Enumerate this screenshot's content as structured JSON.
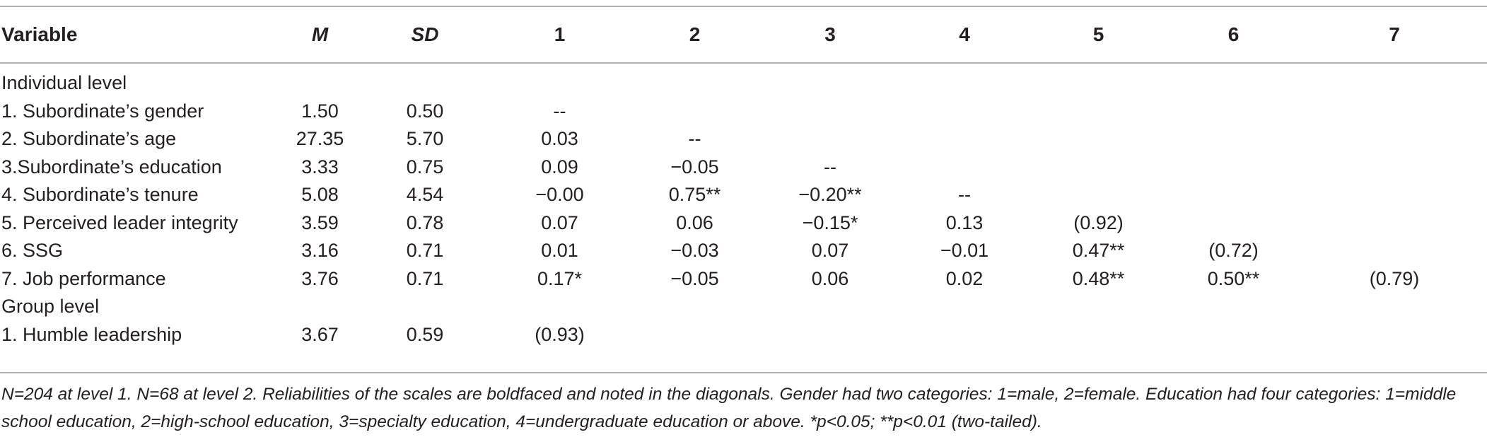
{
  "header": {
    "variable": "Variable",
    "m": "M",
    "sd": "SD",
    "cols": [
      "1",
      "2",
      "3",
      "4",
      "5",
      "6",
      "7"
    ]
  },
  "sections": [
    {
      "label": "Individual level",
      "rows": [
        {
          "label": "1. Subordinate’s gender",
          "m": "1.50",
          "sd": "0.50",
          "cells": [
            "--",
            "",
            "",
            "",
            "",
            "",
            ""
          ]
        },
        {
          "label": "2. Subordinate’s age",
          "m": "27.35",
          "sd": "5.70",
          "cells": [
            "0.03",
            "--",
            "",
            "",
            "",
            "",
            ""
          ]
        },
        {
          "label": "3.Subordinate’s education",
          "m": "3.33",
          "sd": "0.75",
          "cells": [
            "0.09",
            "−0.05",
            "--",
            "",
            "",
            "",
            ""
          ]
        },
        {
          "label": "4. Subordinate’s tenure",
          "m": "5.08",
          "sd": "4.54",
          "cells": [
            "−0.00",
            "0.75**",
            "−0.20**",
            "--",
            "",
            "",
            ""
          ]
        },
        {
          "label": "5. Perceived leader integrity",
          "m": "3.59",
          "sd": "0.78",
          "cells": [
            "0.07",
            "0.06",
            "−0.15*",
            "0.13",
            "(0.92)",
            "",
            ""
          ]
        },
        {
          "label": "6. SSG",
          "m": "3.16",
          "sd": "0.71",
          "cells": [
            "0.01",
            "−0.03",
            "0.07",
            "−0.01",
            "0.47**",
            "(0.72)",
            ""
          ]
        },
        {
          "label": "7. Job performance",
          "m": "3.76",
          "sd": "0.71",
          "cells": [
            "0.17*",
            "−0.05",
            "0.06",
            "0.02",
            "0.48**",
            "0.50**",
            "(0.79)"
          ]
        }
      ]
    },
    {
      "label": "Group level",
      "rows": [
        {
          "label": "1. Humble leadership",
          "m": "3.67",
          "sd": "0.59",
          "cells": [
            "(0.93)",
            "",
            "",
            "",
            "",
            "",
            ""
          ]
        }
      ]
    }
  ],
  "note": "N=204 at level 1. N=68 at level 2. Reliabilities of the scales are boldfaced and noted in the diagonals. Gender had two categories: 1=male, 2=female. Education had four categories: 1=middle school education, 2=high-school education, 3=specialty education, 4=undergraduate education or above. *p<0.05; **p<0.01 (two-tailed)."
}
